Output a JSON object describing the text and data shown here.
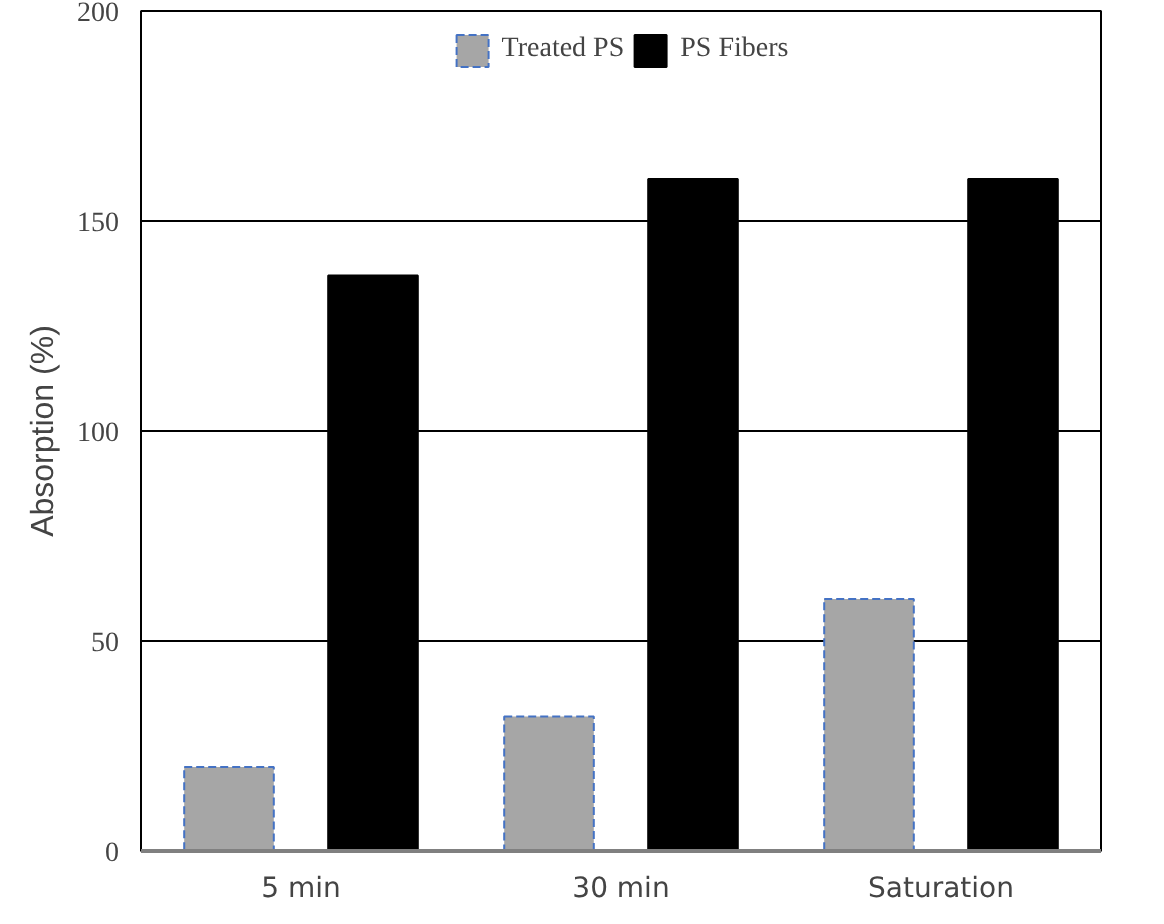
{
  "chart_data": {
    "type": "bar",
    "ylabel": "Absorption (%)",
    "categories": [
      "5 min",
      "30 min",
      "Saturation"
    ],
    "series": [
      {
        "name": "Treated PS",
        "color": "#a6a6a6",
        "values": [
          20,
          32,
          60
        ]
      },
      {
        "name": "PS Fibers",
        "color": "#000000",
        "values": [
          137,
          160,
          160
        ]
      }
    ],
    "ylim": [
      0,
      200
    ],
    "yticks": [
      0,
      50,
      100,
      150,
      200
    ],
    "grid": "y",
    "legend": "top"
  }
}
